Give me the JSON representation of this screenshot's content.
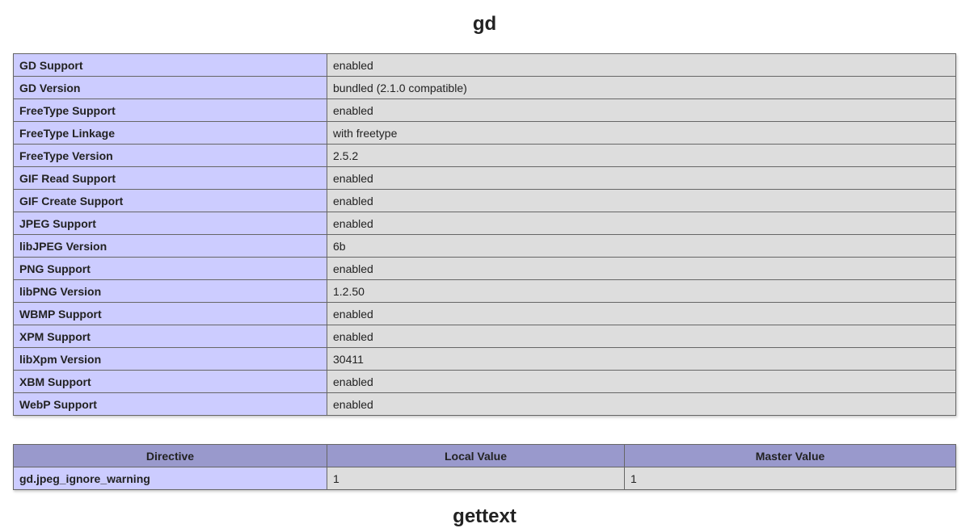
{
  "section_title": "gd",
  "next_section_title": "gettext",
  "info_rows": [
    {
      "label": "GD Support",
      "value": "enabled"
    },
    {
      "label": "GD Version",
      "value": "bundled (2.1.0 compatible)"
    },
    {
      "label": "FreeType Support",
      "value": "enabled"
    },
    {
      "label": "FreeType Linkage",
      "value": "with freetype"
    },
    {
      "label": "FreeType Version",
      "value": "2.5.2"
    },
    {
      "label": "GIF Read Support",
      "value": "enabled"
    },
    {
      "label": "GIF Create Support",
      "value": "enabled"
    },
    {
      "label": "JPEG Support",
      "value": "enabled"
    },
    {
      "label": "libJPEG Version",
      "value": "6b"
    },
    {
      "label": "PNG Support",
      "value": "enabled"
    },
    {
      "label": "libPNG Version",
      "value": "1.2.50"
    },
    {
      "label": "WBMP Support",
      "value": "enabled"
    },
    {
      "label": "XPM Support",
      "value": "enabled"
    },
    {
      "label": "libXpm Version",
      "value": "30411"
    },
    {
      "label": "XBM Support",
      "value": "enabled"
    },
    {
      "label": "WebP Support",
      "value": "enabled"
    }
  ],
  "directives": {
    "headers": [
      "Directive",
      "Local Value",
      "Master Value"
    ],
    "rows": [
      {
        "directive": "gd.jpeg_ignore_warning",
        "local": "1",
        "master": "1"
      }
    ]
  },
  "colors": {
    "label_bg": "#ccccff",
    "value_bg": "#dddddd",
    "header_bg": "#9999cc"
  }
}
